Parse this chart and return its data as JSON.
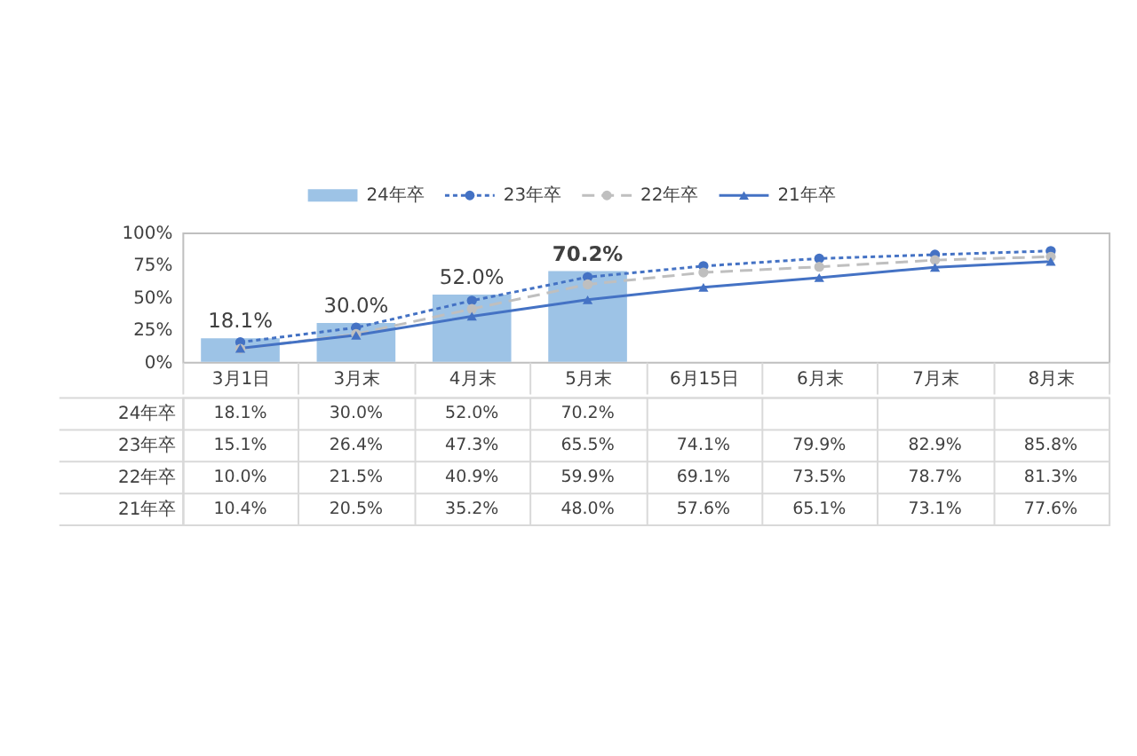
{
  "chart_data": {
    "type": "bar",
    "categories": [
      "3月1日",
      "3月末",
      "4月末",
      "5月末",
      "6月15日",
      "6月末",
      "7月末",
      "8月末"
    ],
    "series": [
      {
        "name": "24年卒",
        "color": "#9dc3e6",
        "values": [
          18.1,
          30.0,
          52.0,
          70.2,
          null,
          null,
          null,
          null
        ],
        "value_labels": [
          "18.1%",
          "30.0%",
          "52.0%",
          "70.2%",
          null,
          null,
          null,
          null
        ]
      },
      {
        "name": "23年卒",
        "type": "line",
        "color": "#4472c4",
        "marker": "circle",
        "line_style": "dotted",
        "values": [
          15.1,
          26.4,
          47.3,
          65.5,
          74.1,
          79.9,
          82.9,
          85.8
        ],
        "value_labels": [
          "15.1%",
          "26.4%",
          "47.3%",
          "65.5%",
          "74.1%",
          "79.9%",
          "82.9%",
          "85.8%"
        ]
      },
      {
        "name": "22年卒",
        "type": "line",
        "color": "#bfbfbf",
        "marker": "circle",
        "line_style": "dashed",
        "values": [
          10.0,
          21.5,
          40.9,
          59.9,
          69.1,
          73.5,
          78.7,
          81.3
        ],
        "value_labels": [
          "10.0%",
          "21.5%",
          "40.9%",
          "59.9%",
          "69.1%",
          "73.5%",
          "78.7%",
          "81.3%"
        ]
      },
      {
        "name": "21年卒",
        "type": "line",
        "color": "#4472c4",
        "marker": "triangle",
        "line_style": "solid",
        "values": [
          10.4,
          20.5,
          35.2,
          48.0,
          57.6,
          65.1,
          73.1,
          77.6
        ],
        "value_labels": [
          "10.4%",
          "20.5%",
          "35.2%",
          "48.0%",
          "57.6%",
          "65.1%",
          "73.1%",
          "77.6%"
        ]
      }
    ],
    "ylim": [
      0,
      100
    ],
    "yticks": [
      {
        "value": 0,
        "label": "0%"
      },
      {
        "value": 25,
        "label": "25%"
      },
      {
        "value": 50,
        "label": "50%"
      },
      {
        "value": 75,
        "label": "75%"
      },
      {
        "value": 100,
        "label": "100%"
      }
    ],
    "legend": "top"
  }
}
